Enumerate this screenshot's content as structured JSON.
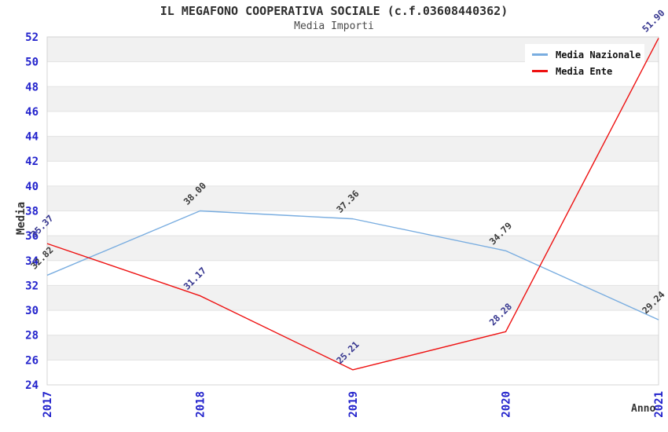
{
  "header": {
    "title": "IL MEGAFONO COOPERATIVA SOCIALE (c.f.03608440362)",
    "subtitle": "Media Importi"
  },
  "axes": {
    "y_title": "Media",
    "x_title": "Anno",
    "tick_color": "#2222cc"
  },
  "legend": {
    "items": [
      {
        "label": "Media Nazionale",
        "color": "#79ade0"
      },
      {
        "label": "Media Ente",
        "color": "#ee1111"
      }
    ]
  },
  "chart_data": {
    "type": "line",
    "title": "IL MEGAFONO COOPERATIVA SOCIALE (c.f.03608440362)",
    "subtitle": "Media Importi",
    "xlabel": "Anno",
    "ylabel": "Media",
    "categories": [
      "2017",
      "2018",
      "2019",
      "2020",
      "2021"
    ],
    "series": [
      {
        "name": "Media Nazionale",
        "color": "#79ade0",
        "label_color": "#3a3a3a",
        "values": [
          32.82,
          38.0,
          37.36,
          34.79,
          29.24
        ]
      },
      {
        "name": "Media Ente",
        "color": "#ee1111",
        "label_color": "#36368f",
        "values": [
          35.37,
          31.17,
          25.21,
          28.28,
          51.9
        ]
      }
    ],
    "ylim": [
      24,
      52
    ],
    "ytick_step": 2,
    "grid": true,
    "band_colors": [
      "#f1f1f1",
      "#ffffff"
    ],
    "gridline_color": "#e2e2e2",
    "border_color": "#d4d4d4",
    "legend_position": "upper right"
  }
}
